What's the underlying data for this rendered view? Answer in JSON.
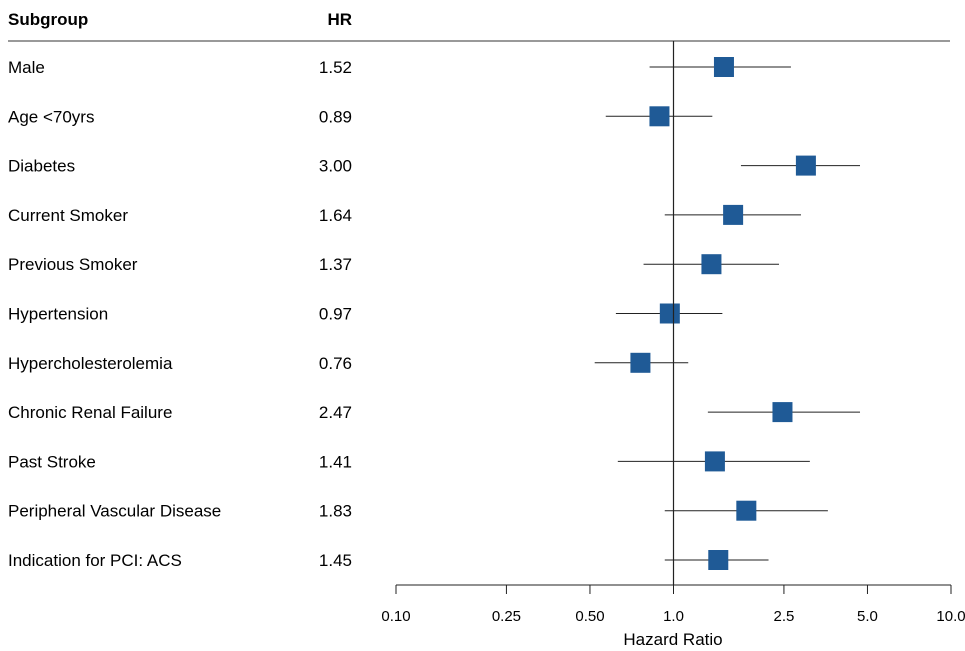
{
  "headers": {
    "subgroup": "Subgroup",
    "hr": "HR"
  },
  "chart_data": {
    "type": "forest",
    "xlabel": "Hazard Ratio",
    "x_scale": "log",
    "xlim": [
      0.1,
      10.0
    ],
    "reference_line": 1.0,
    "ticks": [
      {
        "value": 0.1,
        "label": "0.10"
      },
      {
        "value": 0.25,
        "label": "0.25"
      },
      {
        "value": 0.5,
        "label": "0.50"
      },
      {
        "value": 1.0,
        "label": "1.0"
      },
      {
        "value": 2.5,
        "label": "2.5"
      },
      {
        "value": 5.0,
        "label": "5.0"
      },
      {
        "value": 10.0,
        "label": "10.0"
      }
    ],
    "marker_color": "#1f5a96",
    "rows": [
      {
        "label": "Male",
        "hr": "1.52",
        "est": 1.52,
        "lo": 0.82,
        "hi": 2.65
      },
      {
        "label": "Age <70yrs",
        "hr": "0.89",
        "est": 0.89,
        "lo": 0.57,
        "hi": 1.38
      },
      {
        "label": "Diabetes",
        "hr": "3.00",
        "est": 3.0,
        "lo": 1.75,
        "hi": 4.7
      },
      {
        "label": "Current Smoker",
        "hr": "1.64",
        "est": 1.64,
        "lo": 0.93,
        "hi": 2.88
      },
      {
        "label": "Previous Smoker",
        "hr": "1.37",
        "est": 1.37,
        "lo": 0.78,
        "hi": 2.4
      },
      {
        "label": "Hypertension",
        "hr": "0.97",
        "est": 0.97,
        "lo": 0.62,
        "hi": 1.5
      },
      {
        "label": "Hypercholesterolemia",
        "hr": "0.76",
        "est": 0.76,
        "lo": 0.52,
        "hi": 1.13
      },
      {
        "label": "Chronic Renal Failure",
        "hr": "2.47",
        "est": 2.47,
        "lo": 1.33,
        "hi": 4.7
      },
      {
        "label": "Past Stroke",
        "hr": "1.41",
        "est": 1.41,
        "lo": 0.63,
        "hi": 3.1
      },
      {
        "label": "Peripheral Vascular Disease",
        "hr": "1.83",
        "est": 1.83,
        "lo": 0.93,
        "hi": 3.6
      },
      {
        "label": "Indication for PCI: ACS",
        "hr": "1.45",
        "est": 1.45,
        "lo": 0.93,
        "hi": 2.2
      }
    ]
  }
}
